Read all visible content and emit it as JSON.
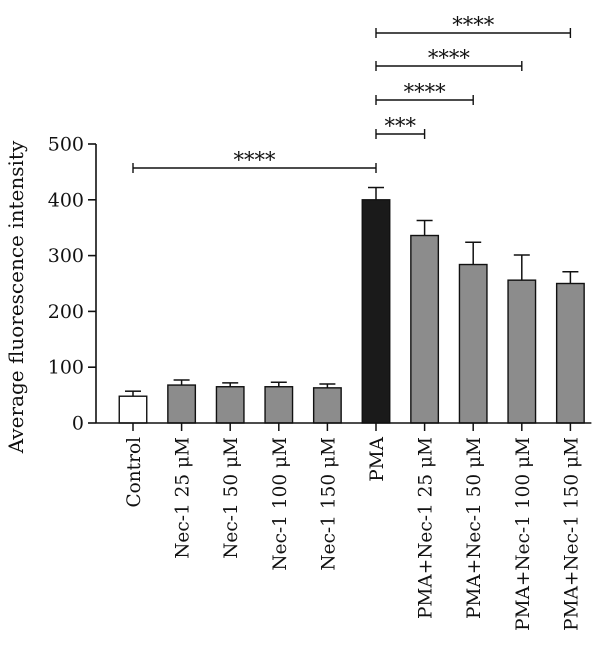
{
  "chart_data": {
    "type": "bar",
    "ylabel": "Average fluorescence intensity",
    "ylim": [
      0,
      500
    ],
    "yticks": [
      0,
      100,
      200,
      300,
      400,
      500
    ],
    "grid": false,
    "legend": "none",
    "categories": [
      "Control",
      "Nec-1 25 μM",
      "Nec-1 50 μM",
      "Nec-1 100 μM",
      "Nec-1 150 μM",
      "PMA",
      "PMA+Nec-1 25 μM",
      "PMA+Nec-1 50 μM",
      "PMA+Nec-1 100 μM",
      "PMA+Nec-1 150 μM"
    ],
    "values": [
      48,
      68,
      65,
      65,
      63,
      400,
      336,
      284,
      256,
      250
    ],
    "errors": [
      9,
      9,
      7,
      8,
      7,
      22,
      27,
      40,
      45,
      21
    ],
    "bar_colors": [
      "#ffffff",
      "#8c8c8c",
      "#8c8c8c",
      "#8c8c8c",
      "#8c8c8c",
      "#1a1a1a",
      "#8c8c8c",
      "#8c8c8c",
      "#8c8c8c",
      "#8c8c8c"
    ],
    "significance": [
      {
        "from": 0,
        "to": 5,
        "label": "****"
      },
      {
        "from": 5,
        "to": 6,
        "label": "***"
      },
      {
        "from": 5,
        "to": 7,
        "label": "****"
      },
      {
        "from": 5,
        "to": 8,
        "label": "****"
      },
      {
        "from": 5,
        "to": 9,
        "label": "****"
      }
    ]
  }
}
